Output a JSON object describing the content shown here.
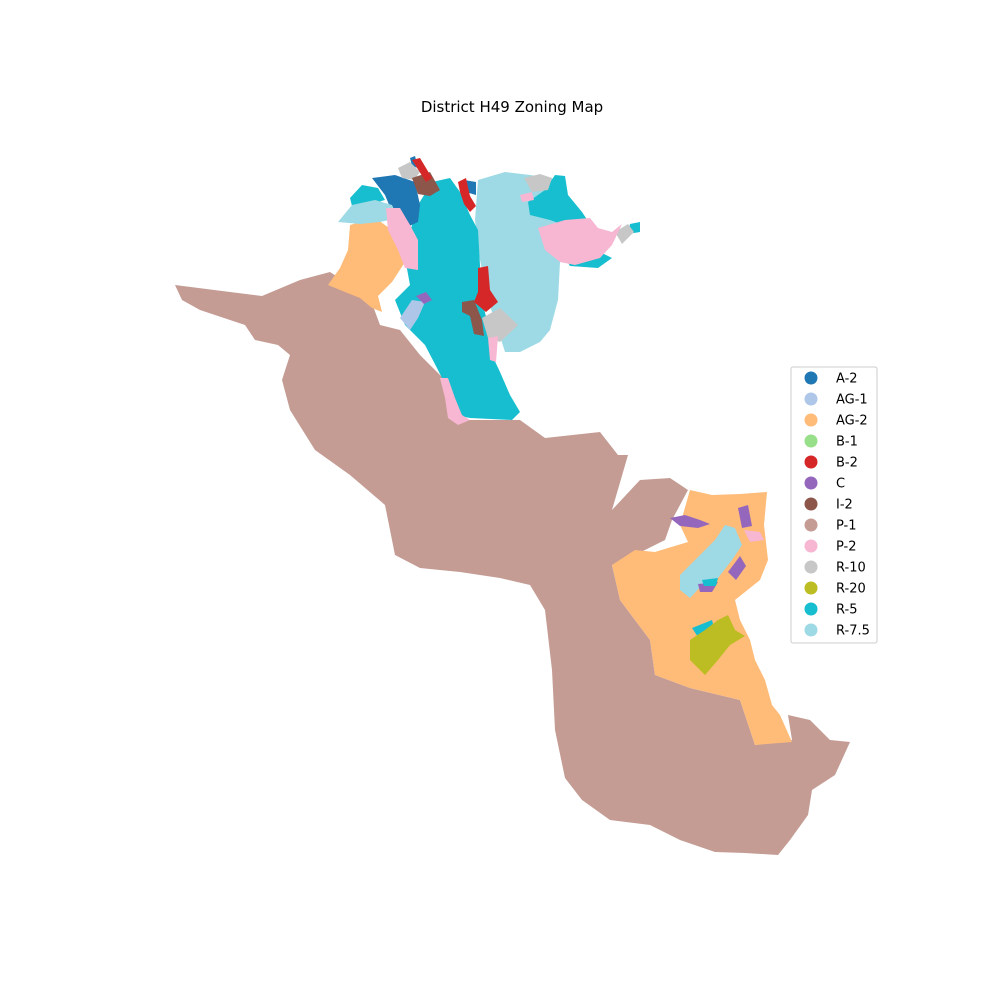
{
  "title": "District H49 Zoning Map",
  "legend": {
    "placement": "right",
    "items": [
      {
        "code": "A-2",
        "color": "#1f77b4"
      },
      {
        "code": "AG-1",
        "color": "#aec7e8"
      },
      {
        "code": "AG-2",
        "color": "#ffbb78"
      },
      {
        "code": "B-1",
        "color": "#98df8a"
      },
      {
        "code": "B-2",
        "color": "#d62728"
      },
      {
        "code": "C",
        "color": "#9467bd"
      },
      {
        "code": "I-2",
        "color": "#8c564b"
      },
      {
        "code": "P-1",
        "color": "#c49c94"
      },
      {
        "code": "P-2",
        "color": "#f7b6d2"
      },
      {
        "code": "R-10",
        "color": "#c7c7c7"
      },
      {
        "code": "R-20",
        "color": "#bcbd22"
      },
      {
        "code": "R-5",
        "color": "#17becf"
      },
      {
        "code": "R-7.5",
        "color": "#9edae5"
      }
    ]
  }
}
